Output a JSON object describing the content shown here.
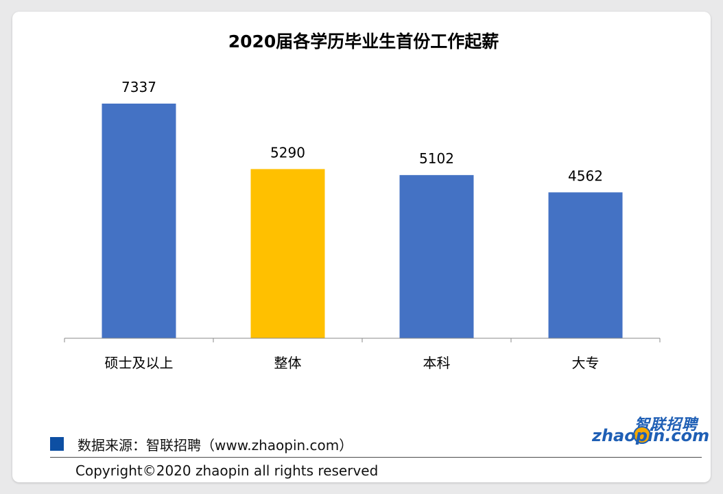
{
  "chart_data": {
    "type": "bar",
    "title": "2020届各学历毕业生首份工作起薪",
    "categories": [
      "硕士及以上",
      "整体",
      "本科",
      "大专"
    ],
    "values": [
      7337,
      5290,
      5102,
      4562
    ],
    "data_labels": [
      "7337",
      "5290",
      "5102",
      "4562"
    ],
    "bar_colors": [
      "#4472c4",
      "#ffc000",
      "#4472c4",
      "#4472c4"
    ],
    "ylim": [
      0,
      7337
    ],
    "grid": false,
    "xlabel": "",
    "ylabel": ""
  },
  "footer": {
    "source": "数据来源：智联招聘（www.zhaopin.com）",
    "legend_color": "#0d4fa3",
    "copyright": "Copyright©2020 zhaopin all rights reserved"
  },
  "logo": {
    "cn": "智联招聘",
    "en": "zhaopin.com",
    "icon": "zhaopin-logo-icon"
  }
}
